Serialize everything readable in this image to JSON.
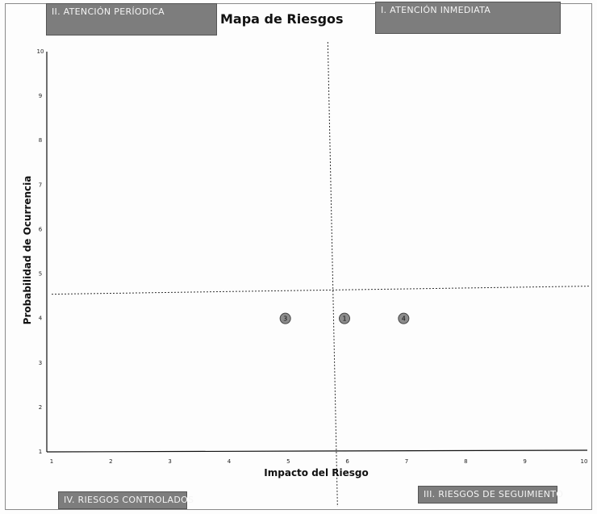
{
  "quadrants": {
    "top_left": "II. ATENCIÓN PERÍODICA",
    "top_right": "I. ATENCIÓN INMEDIATA",
    "bottom_left": "IV. RIESGOS CONTROLADOS",
    "bottom_right": "III. RIESGOS DE SEGUIMIENTO"
  },
  "colors": {
    "label_bg": "#7d7d7d",
    "marker_fill": "#8c8c8c",
    "axis": "#111111",
    "divider": "#333333"
  },
  "chart_data": {
    "type": "scatter",
    "title": "Mapa de Riesgos",
    "xlabel": "Impacto del Riesgo",
    "ylabel": "Probabilidad de Ocurrencia",
    "xlim": [
      1,
      10
    ],
    "ylim": [
      1,
      10
    ],
    "x_ticks": [
      1,
      2,
      3,
      4,
      5,
      6,
      7,
      8,
      9,
      10
    ],
    "y_ticks": [
      1,
      2,
      3,
      4,
      5,
      6,
      7,
      8,
      9,
      10
    ],
    "grid": false,
    "dividers": {
      "x": 5.75,
      "y": 4.6
    },
    "points": [
      {
        "label": "3",
        "x": 4.95,
        "y": 4.0
      },
      {
        "label": "1",
        "x": 5.95,
        "y": 4.0
      },
      {
        "label": "4",
        "x": 6.95,
        "y": 4.0
      }
    ]
  }
}
